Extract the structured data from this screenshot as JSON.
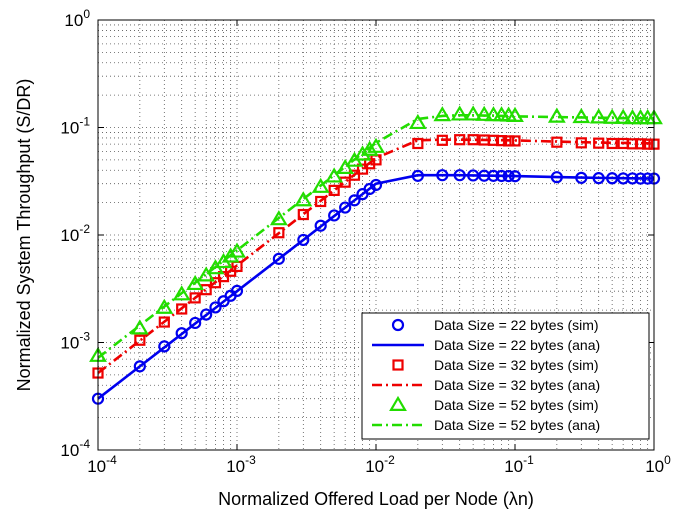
{
  "chart_data": {
    "type": "scatter",
    "title": "",
    "xlabel": "Normalized Offered Load per Node (λn)",
    "ylabel": "Normalized System Throughput (S/DR)",
    "xscale": "log",
    "yscale": "log",
    "xlim": [
      0.0001,
      1
    ],
    "ylim": [
      0.0001,
      1
    ],
    "x_ticks": [
      {
        "base": "10",
        "exp": "-4",
        "value": 0.0001
      },
      {
        "base": "10",
        "exp": "-3",
        "value": 0.001
      },
      {
        "base": "10",
        "exp": "-2",
        "value": 0.01
      },
      {
        "base": "10",
        "exp": "-1",
        "value": 0.1
      },
      {
        "base": "10",
        "exp": "0",
        "value": 1
      }
    ],
    "y_ticks": [
      {
        "base": "10",
        "exp": "-4",
        "value": 0.0001
      },
      {
        "base": "10",
        "exp": "-3",
        "value": 0.001
      },
      {
        "base": "10",
        "exp": "-2",
        "value": 0.01
      },
      {
        "base": "10",
        "exp": "-1",
        "value": 0.1
      },
      {
        "base": "10",
        "exp": "0",
        "value": 1
      }
    ],
    "grid": true,
    "legend_position": "bottom-right",
    "x": [
      0.0001,
      0.0002,
      0.0003,
      0.0004,
      0.0005,
      0.0006,
      0.0007,
      0.0008,
      0.0009,
      0.001,
      0.002,
      0.003,
      0.004,
      0.005,
      0.006,
      0.007,
      0.008,
      0.009,
      0.01,
      0.02,
      0.03,
      0.04,
      0.05,
      0.06,
      0.07,
      0.08,
      0.09,
      0.1,
      0.2,
      0.3,
      0.4,
      0.5,
      0.6,
      0.7,
      0.8,
      0.9,
      1.0
    ],
    "series": [
      {
        "name": "Data Size = 22 bytes (sim)",
        "kind": "markers",
        "marker": "circle",
        "color": "#0000ee",
        "values": [
          0.0003,
          0.0006,
          0.00092,
          0.00122,
          0.00152,
          0.00182,
          0.00212,
          0.00242,
          0.00272,
          0.00302,
          0.006,
          0.009,
          0.0122,
          0.0152,
          0.018,
          0.021,
          0.024,
          0.0268,
          0.0292,
          0.0355,
          0.036,
          0.036,
          0.0358,
          0.0356,
          0.0355,
          0.0354,
          0.0353,
          0.0352,
          0.0345,
          0.034,
          0.0338,
          0.0337,
          0.0336,
          0.0336,
          0.0335,
          0.0335,
          0.0335
        ]
      },
      {
        "name": "Data Size = 22 bytes (ana)",
        "kind": "line",
        "dash": "",
        "color": "#0000ee",
        "values": [
          0.0003,
          0.0006,
          0.0009,
          0.0012,
          0.0015,
          0.0018,
          0.0021,
          0.0024,
          0.0027,
          0.003,
          0.006,
          0.009,
          0.012,
          0.015,
          0.018,
          0.021,
          0.024,
          0.027,
          0.03,
          0.036,
          0.036,
          0.036,
          0.0358,
          0.0357,
          0.0356,
          0.0355,
          0.0354,
          0.0353,
          0.0346,
          0.0342,
          0.034,
          0.0339,
          0.0338,
          0.0337,
          0.0336,
          0.0336,
          0.0336
        ]
      },
      {
        "name": "Data Size = 32 bytes (sim)",
        "kind": "markers",
        "marker": "square",
        "color": "#ee0000",
        "values": [
          0.00052,
          0.00105,
          0.00155,
          0.00205,
          0.0026,
          0.0031,
          0.0036,
          0.0041,
          0.0046,
          0.0051,
          0.0105,
          0.0155,
          0.0205,
          0.026,
          0.031,
          0.036,
          0.041,
          0.046,
          0.05,
          0.071,
          0.076,
          0.077,
          0.077,
          0.0765,
          0.076,
          0.0755,
          0.075,
          0.075,
          0.073,
          0.072,
          0.0715,
          0.071,
          0.071,
          0.0705,
          0.0705,
          0.07,
          0.07
        ]
      },
      {
        "name": "Data Size = 32 bytes (ana)",
        "kind": "line",
        "dash": "10,4,2,4",
        "color": "#ee0000",
        "values": [
          0.00052,
          0.00104,
          0.00156,
          0.00208,
          0.0026,
          0.00312,
          0.00364,
          0.00416,
          0.00468,
          0.0052,
          0.0104,
          0.0156,
          0.0208,
          0.026,
          0.0312,
          0.0364,
          0.0416,
          0.0468,
          0.052,
          0.076,
          0.077,
          0.077,
          0.0768,
          0.0766,
          0.0764,
          0.0762,
          0.076,
          0.0758,
          0.074,
          0.073,
          0.0725,
          0.072,
          0.0718,
          0.0716,
          0.0714,
          0.0712,
          0.071
        ]
      },
      {
        "name": "Data Size = 52 bytes (sim)",
        "kind": "markers",
        "marker": "triangle",
        "color": "#22dd00",
        "values": [
          0.00075,
          0.00135,
          0.0021,
          0.0028,
          0.0035,
          0.0042,
          0.0049,
          0.0056,
          0.0063,
          0.007,
          0.014,
          0.021,
          0.028,
          0.035,
          0.042,
          0.049,
          0.056,
          0.062,
          0.066,
          0.11,
          0.13,
          0.132,
          0.132,
          0.131,
          0.13,
          0.13,
          0.129,
          0.128,
          0.126,
          0.125,
          0.124,
          0.123,
          0.123,
          0.122,
          0.122,
          0.122,
          0.122
        ]
      },
      {
        "name": "Data Size = 52 bytes (ana)",
        "kind": "line",
        "dash": "10,4,2,4",
        "color": "#22dd00",
        "values": [
          0.00072,
          0.00144,
          0.00216,
          0.00288,
          0.0036,
          0.00432,
          0.00504,
          0.00576,
          0.00648,
          0.0072,
          0.0144,
          0.0216,
          0.0288,
          0.036,
          0.0432,
          0.0504,
          0.0576,
          0.0648,
          0.072,
          0.12,
          0.128,
          0.13,
          0.13,
          0.129,
          0.129,
          0.128,
          0.128,
          0.127,
          0.125,
          0.124,
          0.123,
          0.123,
          0.122,
          0.122,
          0.122,
          0.122,
          0.122
        ]
      }
    ]
  }
}
